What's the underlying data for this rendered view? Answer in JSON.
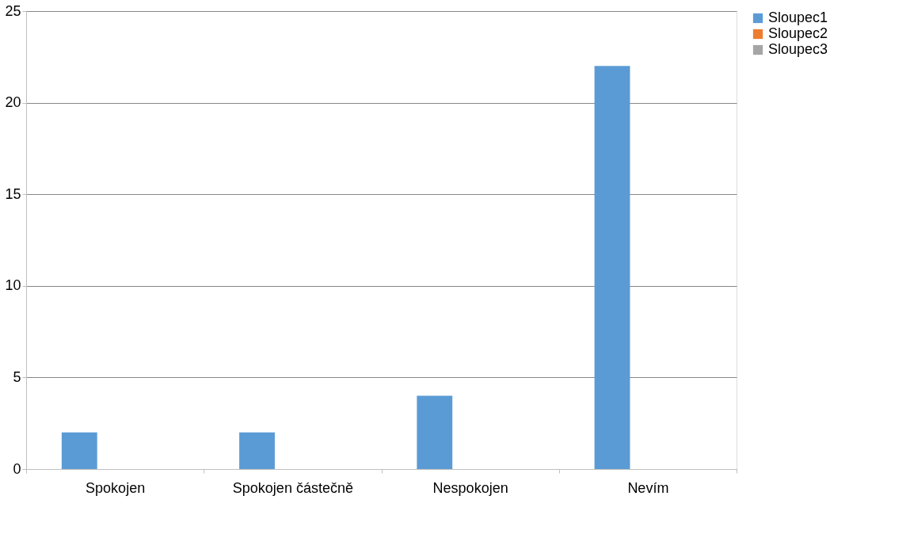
{
  "chart_data": {
    "type": "bar",
    "categories": [
      "Spokojen",
      "Spokojen částečně",
      "Nespokojen",
      "Nevím"
    ],
    "series": [
      {
        "name": "Sloupec1",
        "color": "#5b9bd5",
        "values": [
          2,
          2,
          4,
          22
        ]
      },
      {
        "name": "Sloupec2",
        "color": "#ed7d31",
        "values": [
          null,
          null,
          null,
          null
        ]
      },
      {
        "name": "Sloupec3",
        "color": "#a5a5a5",
        "values": [
          null,
          null,
          null,
          null
        ]
      }
    ],
    "ylim": [
      0,
      25
    ],
    "yticks": [
      0,
      5,
      10,
      15,
      20,
      25
    ],
    "grid": "y",
    "legend": "right"
  }
}
